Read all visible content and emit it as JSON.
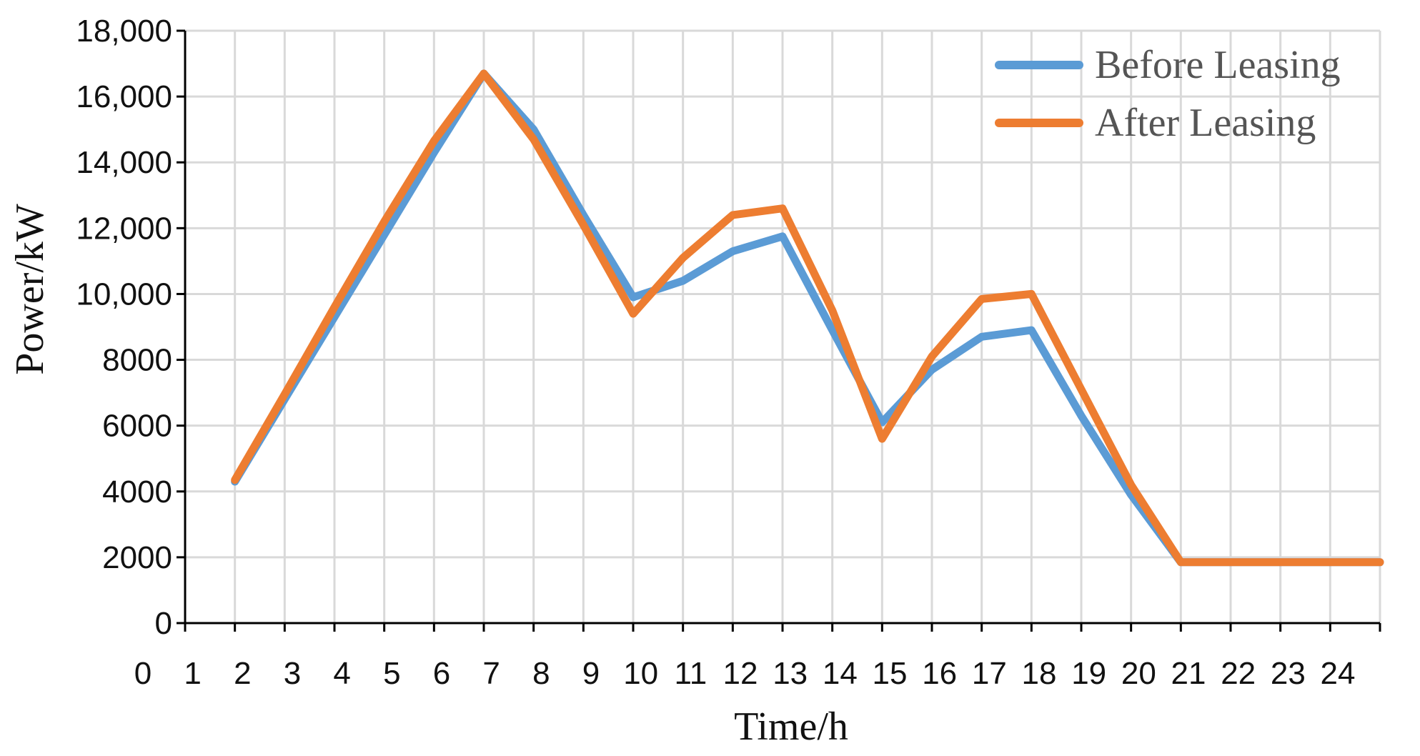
{
  "chart_data": {
    "type": "line",
    "title": "",
    "xlabel": "Time/h",
    "ylabel": "Power/kW",
    "xlim": [
      0,
      24
    ],
    "ylim": [
      0,
      18000
    ],
    "x_ticks": [
      "0",
      "1",
      "2",
      "3",
      "4",
      "5",
      "6",
      "7",
      "8",
      "9",
      "10",
      "11",
      "12",
      "13",
      "14",
      "15",
      "16",
      "17",
      "18",
      "19",
      "20",
      "21",
      "22",
      "23",
      "24"
    ],
    "y_ticks": [
      {
        "value": 0,
        "label": "0"
      },
      {
        "value": 2000,
        "label": "2000"
      },
      {
        "value": 4000,
        "label": "4000"
      },
      {
        "value": 6000,
        "label": "6000"
      },
      {
        "value": 8000,
        "label": "8000"
      },
      {
        "value": 10000,
        "label": "10,000"
      },
      {
        "value": 12000,
        "label": "12,000"
      },
      {
        "value": 14000,
        "label": "14,000"
      },
      {
        "value": 16000,
        "label": "16,000"
      },
      {
        "value": 18000,
        "label": "18,000"
      }
    ],
    "grid": true,
    "legend_position": "top-right",
    "x": [
      1,
      2,
      3,
      4,
      5,
      6,
      7,
      8,
      9,
      10,
      11,
      12,
      13,
      14,
      15,
      16,
      17,
      18,
      19,
      20,
      21,
      22,
      23,
      24
    ],
    "series": [
      {
        "name": "Before Leasing",
        "color": "#5b9bd5",
        "values": [
          4300,
          6800,
          9300,
          11800,
          14300,
          16700,
          15000,
          12400,
          9900,
          10400,
          11300,
          11750,
          8900,
          6100,
          7700,
          8700,
          8900,
          6300,
          3900,
          1850,
          1850,
          1850,
          1850,
          1850
        ]
      },
      {
        "name": "After Leasing",
        "color": "#ed7d31",
        "values": [
          4350,
          6950,
          9600,
          12200,
          14650,
          16700,
          14700,
          12100,
          9400,
          11100,
          12400,
          12600,
          9500,
          5600,
          8100,
          9850,
          10000,
          7100,
          4200,
          1850,
          1850,
          1850,
          1850,
          1850
        ]
      }
    ]
  }
}
